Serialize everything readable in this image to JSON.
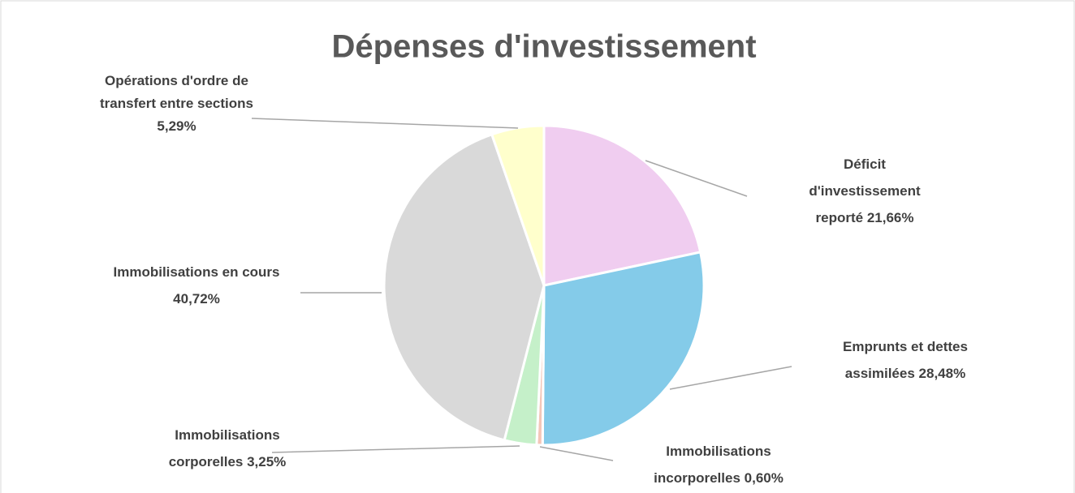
{
  "chart_data": {
    "type": "pie",
    "title": "Dépenses d'investissement",
    "categories": [
      "Déficit d'investissement reporté",
      "Emprunts et dettes assimilées",
      "Immobilisations incorporelles",
      "Immobilisations corporelles",
      "Immobilisations en cours",
      "Opérations d'ordre de transfert entre sections"
    ],
    "values": [
      21.66,
      28.48,
      0.6,
      3.25,
      40.72,
      5.29
    ],
    "value_labels": [
      "21,66%",
      "28,48%",
      "0,60%",
      "3,25%",
      "40,72%",
      "5,29%"
    ],
    "colors": [
      "#f0cdf0",
      "#84cbe9",
      "#f4c6b8",
      "#c5f0c9",
      "#d9d9d9",
      "#ffffcc"
    ]
  }
}
